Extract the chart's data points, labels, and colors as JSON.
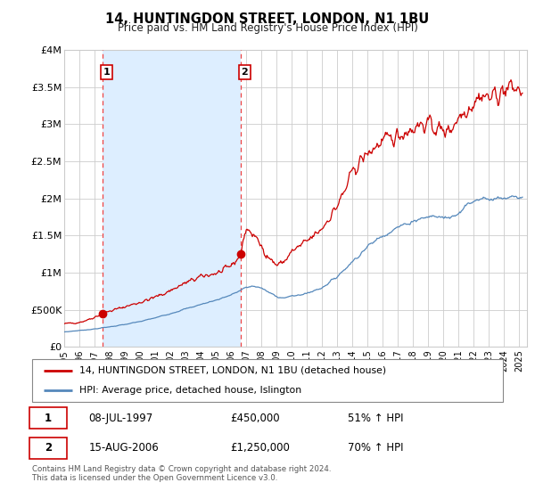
{
  "title": "14, HUNTINGDON STREET, LONDON, N1 1BU",
  "subtitle": "Price paid vs. HM Land Registry's House Price Index (HPI)",
  "ylim": [
    0,
    4000000
  ],
  "yticks": [
    0,
    500000,
    1000000,
    1500000,
    2000000,
    2500000,
    3000000,
    3500000,
    4000000
  ],
  "ytick_labels": [
    "£0",
    "£500K",
    "£1M",
    "£1.5M",
    "£2M",
    "£2.5M",
    "£3M",
    "£3.5M",
    "£4M"
  ],
  "xlim_start": 1995.0,
  "xlim_end": 2025.5,
  "xticks": [
    1995,
    1996,
    1997,
    1998,
    1999,
    2000,
    2001,
    2002,
    2003,
    2004,
    2005,
    2006,
    2007,
    2008,
    2009,
    2010,
    2011,
    2012,
    2013,
    2014,
    2015,
    2016,
    2017,
    2018,
    2019,
    2020,
    2021,
    2022,
    2023,
    2024,
    2025
  ],
  "red_line_color": "#cc0000",
  "blue_line_color": "#5588bb",
  "grid_color": "#cccccc",
  "bg_color": "#ffffff",
  "shade_color": "#ddeeff",
  "sale1_x": 1997.52,
  "sale1_y": 450000,
  "sale2_x": 2006.62,
  "sale2_y": 1250000,
  "legend_label_red": "14, HUNTINGDON STREET, LONDON, N1 1BU (detached house)",
  "legend_label_blue": "HPI: Average price, detached house, Islington",
  "annotation1_num": "1",
  "annotation1_date": "08-JUL-1997",
  "annotation1_price": "£450,000",
  "annotation1_hpi": "51% ↑ HPI",
  "annotation2_num": "2",
  "annotation2_date": "15-AUG-2006",
  "annotation2_price": "£1,250,000",
  "annotation2_hpi": "70% ↑ HPI",
  "footnote": "Contains HM Land Registry data © Crown copyright and database right 2024.\nThis data is licensed under the Open Government Licence v3.0.",
  "vline1_x": 1997.52,
  "vline2_x": 2006.62,
  "vline_color": "#ee4444",
  "red_keypoints": [
    [
      1995.0,
      310000
    ],
    [
      1995.5,
      320000
    ],
    [
      1996.0,
      330000
    ],
    [
      1996.5,
      360000
    ],
    [
      1997.0,
      400000
    ],
    [
      1997.52,
      450000
    ],
    [
      1998.0,
      480000
    ],
    [
      1998.5,
      510000
    ],
    [
      1999.0,
      540000
    ],
    [
      1999.5,
      570000
    ],
    [
      2000.0,
      600000
    ],
    [
      2000.5,
      630000
    ],
    [
      2001.0,
      670000
    ],
    [
      2001.5,
      710000
    ],
    [
      2002.0,
      760000
    ],
    [
      2002.5,
      810000
    ],
    [
      2003.0,
      860000
    ],
    [
      2003.5,
      900000
    ],
    [
      2004.0,
      940000
    ],
    [
      2004.5,
      970000
    ],
    [
      2005.0,
      990000
    ],
    [
      2005.5,
      1020000
    ],
    [
      2006.0,
      1100000
    ],
    [
      2006.3,
      1150000
    ],
    [
      2006.62,
      1250000
    ],
    [
      2007.0,
      1600000
    ],
    [
      2007.5,
      1500000
    ],
    [
      2008.0,
      1350000
    ],
    [
      2008.5,
      1200000
    ],
    [
      2009.0,
      1100000
    ],
    [
      2009.5,
      1150000
    ],
    [
      2010.0,
      1280000
    ],
    [
      2010.5,
      1350000
    ],
    [
      2011.0,
      1420000
    ],
    [
      2011.5,
      1500000
    ],
    [
      2012.0,
      1600000
    ],
    [
      2012.5,
      1750000
    ],
    [
      2013.0,
      1900000
    ],
    [
      2013.5,
      2100000
    ],
    [
      2014.0,
      2350000
    ],
    [
      2014.5,
      2500000
    ],
    [
      2015.0,
      2600000
    ],
    [
      2015.5,
      2700000
    ],
    [
      2016.0,
      2750000
    ],
    [
      2016.5,
      2800000
    ],
    [
      2017.0,
      2850000
    ],
    [
      2017.5,
      2900000
    ],
    [
      2018.0,
      2950000
    ],
    [
      2018.5,
      3000000
    ],
    [
      2019.0,
      3000000
    ],
    [
      2019.5,
      2950000
    ],
    [
      2020.0,
      2900000
    ],
    [
      2020.5,
      2950000
    ],
    [
      2021.0,
      3100000
    ],
    [
      2021.5,
      3200000
    ],
    [
      2022.0,
      3300000
    ],
    [
      2022.5,
      3400000
    ],
    [
      2023.0,
      3350000
    ],
    [
      2023.5,
      3400000
    ],
    [
      2024.0,
      3450000
    ],
    [
      2024.5,
      3500000
    ],
    [
      2025.0,
      3450000
    ]
  ],
  "blue_keypoints": [
    [
      1995.0,
      200000
    ],
    [
      1996.0,
      220000
    ],
    [
      1997.0,
      240000
    ],
    [
      1997.5,
      255000
    ],
    [
      1998.0,
      270000
    ],
    [
      1999.0,
      300000
    ],
    [
      2000.0,
      340000
    ],
    [
      2001.0,
      390000
    ],
    [
      2002.0,
      450000
    ],
    [
      2003.0,
      510000
    ],
    [
      2004.0,
      570000
    ],
    [
      2005.0,
      630000
    ],
    [
      2006.0,
      700000
    ],
    [
      2006.62,
      760000
    ],
    [
      2007.0,
      800000
    ],
    [
      2007.5,
      820000
    ],
    [
      2008.0,
      790000
    ],
    [
      2008.5,
      730000
    ],
    [
      2009.0,
      680000
    ],
    [
      2009.5,
      660000
    ],
    [
      2010.0,
      680000
    ],
    [
      2010.5,
      700000
    ],
    [
      2011.0,
      720000
    ],
    [
      2011.5,
      760000
    ],
    [
      2012.0,
      800000
    ],
    [
      2012.5,
      870000
    ],
    [
      2013.0,
      950000
    ],
    [
      2013.5,
      1050000
    ],
    [
      2014.0,
      1150000
    ],
    [
      2014.5,
      1250000
    ],
    [
      2015.0,
      1350000
    ],
    [
      2015.5,
      1430000
    ],
    [
      2016.0,
      1500000
    ],
    [
      2016.5,
      1560000
    ],
    [
      2017.0,
      1610000
    ],
    [
      2017.5,
      1650000
    ],
    [
      2018.0,
      1700000
    ],
    [
      2018.5,
      1730000
    ],
    [
      2019.0,
      1750000
    ],
    [
      2019.5,
      1760000
    ],
    [
      2020.0,
      1740000
    ],
    [
      2020.5,
      1750000
    ],
    [
      2021.0,
      1820000
    ],
    [
      2021.5,
      1900000
    ],
    [
      2022.0,
      1970000
    ],
    [
      2022.5,
      2010000
    ],
    [
      2023.0,
      2000000
    ],
    [
      2023.5,
      1980000
    ],
    [
      2024.0,
      1990000
    ],
    [
      2024.5,
      2000000
    ],
    [
      2025.0,
      2000000
    ]
  ]
}
